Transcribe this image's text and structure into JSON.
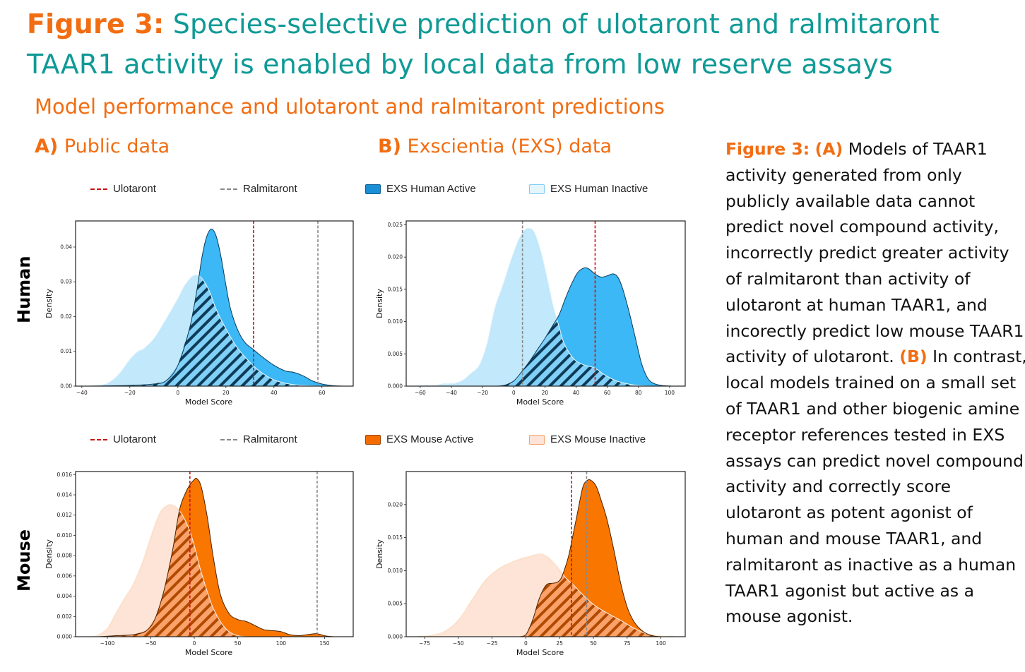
{
  "title": {
    "prefix": "Figure 3:",
    "line1": "Species-selective prediction of ulotaront and ralmitaront",
    "line2": "TAAR1 activity is enabled by local data from low reserve assays"
  },
  "subtitle": "Model performance and ulotaront and ralmitaront predictions",
  "panels": {
    "a": {
      "letter": "A)",
      "label": "Public data"
    },
    "b": {
      "letter": "B)",
      "label": "Exscientia (EXS) data"
    }
  },
  "row_labels": {
    "human": "Human",
    "mouse": "Mouse"
  },
  "colors": {
    "title_teal": "#0f9a96",
    "accent_orange": "#f26d12",
    "ulotaront_line": "#cc1111",
    "ralmitaront_line": "#888888",
    "human_active": "#3bb8f5",
    "human_active_edge": "#0d3b57",
    "human_inactive": "#c2e8fb",
    "human_inactive_edge": "#58bff0",
    "human_overlap": "#80d0f8",
    "human_hatch": "#0d3b57",
    "mouse_active": "#f97600",
    "mouse_active_edge": "#4a2300",
    "mouse_inactive": "#fde4d6",
    "mouse_inactive_edge": "#f59443",
    "mouse_overlap": "#fba26a",
    "mouse_hatch": "#b04a00"
  },
  "legends": {
    "human": [
      {
        "type": "line",
        "label": "Ulotaront",
        "color": "#cc1111"
      },
      {
        "type": "line",
        "label": "Ralmitaront",
        "color": "#888888"
      },
      {
        "type": "swatch",
        "label": "EXS Human Active",
        "fill": "#1a8fd6",
        "edge": "#0b5c8f"
      },
      {
        "type": "swatch",
        "label": "EXS Human Inactive",
        "fill": "#e3f5fd",
        "edge": "#7fcdf3"
      }
    ],
    "mouse": [
      {
        "type": "line",
        "label": "Ulotaront",
        "color": "#cc1111"
      },
      {
        "type": "line",
        "label": "Ralmitaront",
        "color": "#888888"
      },
      {
        "type": "swatch",
        "label": "EXS Mouse Active",
        "fill": "#f46c00",
        "edge": "#9a4300"
      },
      {
        "type": "swatch",
        "label": "EXS Mouse Inactive",
        "fill": "#fde4d6",
        "edge": "#f5a36b"
      }
    ]
  },
  "caption": {
    "prefix": "Figure 3:",
    "a_marker": "(A)",
    "a_text": " Models of TAAR1 activity generated from only publicly available data cannot predict novel compound activity, incorrectly predict greater activity of ralmitaront than activity of ulotaront at human TAAR1, and incorectly predict low mouse TAAR1 activity of ulotaront. ",
    "b_marker": "(B)",
    "b_text": " In contrast, local models trained on a small set of TAAR1 and other biogenic amine receptor references tested in EXS assays can predict novel compound activity and correctly score ulotaront as potent agonist of human and mouse TAAR1, and ralmitaront as inactive as a human TAAR1 agonist but active as a mouse agonist."
  },
  "chart_data": [
    {
      "id": "a-human",
      "type": "area",
      "title": "Public data — Human",
      "xlabel": "Model Score",
      "ylabel": "Density",
      "xlim": [
        -42.6,
        73
      ],
      "ylim": [
        0,
        0.0475
      ],
      "xticks": [
        -40,
        -20,
        0,
        20,
        40,
        60
      ],
      "xtick_labels": [
        "−40",
        "−20",
        "0",
        "20",
        "40",
        "60"
      ],
      "yticks": [
        0,
        0.01,
        0.02,
        0.03,
        0.04
      ],
      "ytick_labels": [
        "0.00",
        "0.01",
        "0.02",
        "0.03",
        "0.04"
      ],
      "palette": "human",
      "vlines": [
        {
          "name": "Ulotaront",
          "x": 31.5,
          "color": "#cc1111"
        },
        {
          "name": "Ralmitaront",
          "x": 58.3,
          "color": "#888888"
        }
      ],
      "series": [
        {
          "name": "Active",
          "x": [
            -37,
            -20,
            -10,
            -5,
            0,
            5,
            8,
            10,
            12,
            14,
            16,
            18,
            20,
            22,
            25,
            28,
            31.5,
            35,
            40,
            45,
            48,
            52,
            56,
            60,
            65,
            70
          ],
          "y": [
            0,
            0.0002,
            0.0006,
            0.0015,
            0.006,
            0.017,
            0.028,
            0.037,
            0.043,
            0.0452,
            0.043,
            0.037,
            0.029,
            0.022,
            0.016,
            0.0125,
            0.0105,
            0.0085,
            0.006,
            0.0043,
            0.004,
            0.003,
            0.0015,
            0.0006,
            0.0001,
            0
          ]
        },
        {
          "name": "Inactive",
          "x": [
            -37,
            -30,
            -25,
            -20,
            -17,
            -14,
            -10,
            -5,
            0,
            3,
            6,
            8,
            10,
            13,
            16,
            20,
            25,
            31.5,
            35,
            40,
            45,
            50,
            55,
            60,
            65
          ],
          "y": [
            0,
            0.0005,
            0.003,
            0.0075,
            0.0097,
            0.0108,
            0.0135,
            0.019,
            0.025,
            0.029,
            0.0315,
            0.0318,
            0.031,
            0.0275,
            0.022,
            0.0165,
            0.0108,
            0.0058,
            0.0038,
            0.0018,
            0.0008,
            0.0003,
            0.0001,
            0,
            0
          ]
        }
      ]
    },
    {
      "id": "b-human",
      "type": "area",
      "title": "Exscientia (EXS) data — Human",
      "xlabel": "Model Score",
      "ylabel": "Density",
      "xlim": [
        -69,
        110
      ],
      "ylim": [
        0,
        0.0256
      ],
      "xticks": [
        -60,
        -40,
        -20,
        0,
        20,
        40,
        60,
        80,
        100
      ],
      "xtick_labels": [
        "−60",
        "−40",
        "−20",
        "0",
        "20",
        "40",
        "60",
        "80",
        "100"
      ],
      "yticks": [
        0,
        0.005,
        0.01,
        0.015,
        0.02,
        0.025
      ],
      "ytick_labels": [
        "0.000",
        "0.005",
        "0.010",
        "0.015",
        "0.020",
        "0.025"
      ],
      "palette": "human",
      "vlines": [
        {
          "name": "Ulotaront",
          "x": 52.2,
          "color": "#cc1111"
        },
        {
          "name": "Ralmitaront",
          "x": 5.6,
          "color": "#888888"
        }
      ],
      "series": [
        {
          "name": "Active",
          "x": [
            -10,
            -5,
            0,
            5,
            10,
            15,
            20,
            25,
            29,
            33,
            37,
            41,
            45,
            48,
            52,
            56,
            60,
            64,
            67,
            70,
            74,
            78,
            82,
            86,
            90,
            95,
            102
          ],
          "y": [
            0,
            0.0002,
            0.0008,
            0.0022,
            0.0038,
            0.0056,
            0.0074,
            0.0094,
            0.011,
            0.0135,
            0.0158,
            0.0176,
            0.0183,
            0.0182,
            0.0174,
            0.0169,
            0.0171,
            0.0174,
            0.0168,
            0.015,
            0.0115,
            0.0075,
            0.0035,
            0.0012,
            0.0004,
            0.0001,
            0
          ]
        },
        {
          "name": "Inactive",
          "x": [
            -60,
            -50,
            -45,
            -38,
            -33,
            -28,
            -22,
            -17,
            -12,
            -7,
            -2,
            3,
            7,
            10,
            13,
            17,
            21,
            25,
            29,
            32,
            36,
            40,
            45,
            52,
            58,
            65,
            72,
            80,
            90
          ],
          "y": [
            0,
            0.0001,
            0.0003,
            0.0004,
            0.0008,
            0.0018,
            0.0032,
            0.0065,
            0.012,
            0.0155,
            0.0192,
            0.0225,
            0.0241,
            0.0244,
            0.0238,
            0.021,
            0.017,
            0.0125,
            0.0093,
            0.0068,
            0.005,
            0.0039,
            0.0033,
            0.0028,
            0.0018,
            0.0009,
            0.0004,
            0.0001,
            0
          ]
        }
      ]
    },
    {
      "id": "a-mouse",
      "type": "area",
      "title": "Public data — Mouse",
      "xlabel": "Model Score",
      "ylabel": "Density",
      "xlim": [
        -136.6,
        183
      ],
      "ylim": [
        0,
        0.0163
      ],
      "xticks": [
        -100,
        -50,
        0,
        50,
        100,
        150
      ],
      "xtick_labels": [
        "−100",
        "−50",
        "0",
        "50",
        "100",
        "150"
      ],
      "yticks": [
        0,
        0.002,
        0.004,
        0.006,
        0.008,
        0.01,
        0.012,
        0.014,
        0.016
      ],
      "ytick_labels": [
        "0.000",
        "0.002",
        "0.004",
        "0.006",
        "0.008",
        "0.010",
        "0.012",
        "0.014",
        "0.016"
      ],
      "palette": "mouse",
      "vlines": [
        {
          "name": "Ulotaront",
          "x": -5,
          "color": "#cc1111"
        },
        {
          "name": "Ralmitaront",
          "x": 141.5,
          "color": "#888888"
        }
      ],
      "series": [
        {
          "name": "Active",
          "x": [
            -110,
            -90,
            -70,
            -55,
            -45,
            -35,
            -25,
            -17,
            -10,
            -5,
            0,
            3,
            8,
            15,
            22,
            30,
            40,
            50,
            60,
            70,
            80,
            90,
            100,
            110,
            120,
            130,
            141,
            150,
            160
          ],
          "y": [
            0,
            0.0001,
            0.0002,
            0.0006,
            0.0018,
            0.0045,
            0.0085,
            0.0125,
            0.0142,
            0.015,
            0.0155,
            0.0156,
            0.0148,
            0.0118,
            0.0078,
            0.0042,
            0.0023,
            0.0017,
            0.0015,
            0.0011,
            0.0007,
            0.0006,
            0.0005,
            0.0002,
            0.0001,
            0.0002,
            0.0003,
            0.0001,
            0
          ]
        },
        {
          "name": "Inactive",
          "x": [
            -118,
            -110,
            -100,
            -90,
            -80,
            -70,
            -60,
            -50,
            -40,
            -32,
            -26,
            -20,
            -15,
            -10,
            -5,
            0,
            5,
            10,
            20,
            30,
            40,
            50,
            60
          ],
          "y": [
            0,
            0.0002,
            0.0008,
            0.0023,
            0.0038,
            0.0052,
            0.0072,
            0.0098,
            0.0121,
            0.0129,
            0.013,
            0.0127,
            0.0122,
            0.0114,
            0.0104,
            0.009,
            0.0073,
            0.0058,
            0.0032,
            0.0015,
            0.0005,
            0.0001,
            0
          ]
        }
      ]
    },
    {
      "id": "b-mouse",
      "type": "area",
      "title": "Exscientia (EXS) data — Mouse",
      "xlabel": "Model Score",
      "ylabel": "Density",
      "xlim": [
        -88.6,
        118
      ],
      "ylim": [
        0,
        0.025
      ],
      "xticks": [
        -75,
        -50,
        -25,
        0,
        25,
        50,
        75,
        100
      ],
      "xtick_labels": [
        "−75",
        "−50",
        "−25",
        "0",
        "25",
        "50",
        "75",
        "100"
      ],
      "yticks": [
        0,
        0.005,
        0.01,
        0.015,
        0.02
      ],
      "ytick_labels": [
        "0.000",
        "0.005",
        "0.010",
        "0.015",
        "0.020"
      ],
      "palette": "mouse",
      "vlines": [
        {
          "name": "Ulotaront",
          "x": 33.8,
          "color": "#cc1111"
        },
        {
          "name": "Ralmitaront",
          "x": 45,
          "color": "#888888"
        }
      ],
      "series": [
        {
          "name": "Active",
          "x": [
            -5,
            0,
            5,
            10,
            15,
            20,
            23,
            26,
            29,
            32,
            35,
            38,
            42,
            45,
            48,
            52,
            56,
            60,
            65,
            70,
            75,
            80,
            85,
            90,
            95,
            100
          ],
          "y": [
            0,
            0.0003,
            0.0025,
            0.0058,
            0.0078,
            0.0081,
            0.0082,
            0.0088,
            0.0104,
            0.0125,
            0.0155,
            0.0185,
            0.0225,
            0.0236,
            0.0237,
            0.0228,
            0.0205,
            0.0178,
            0.0133,
            0.0083,
            0.0045,
            0.0023,
            0.0011,
            0.0004,
            0.0001,
            0
          ]
        },
        {
          "name": "Inactive",
          "x": [
            -80,
            -70,
            -60,
            -50,
            -40,
            -30,
            -20,
            -10,
            0,
            10,
            15,
            20,
            25,
            30,
            35,
            40,
            45,
            50,
            55,
            60,
            70,
            80,
            90,
            100,
            110
          ],
          "y": [
            0,
            0.0002,
            0.0008,
            0.0025,
            0.0055,
            0.0085,
            0.0103,
            0.0113,
            0.012,
            0.0125,
            0.0122,
            0.0113,
            0.0101,
            0.0088,
            0.0079,
            0.0068,
            0.0058,
            0.0049,
            0.0042,
            0.0036,
            0.0025,
            0.0013,
            0.0004,
            0.0001,
            0
          ]
        }
      ]
    }
  ]
}
